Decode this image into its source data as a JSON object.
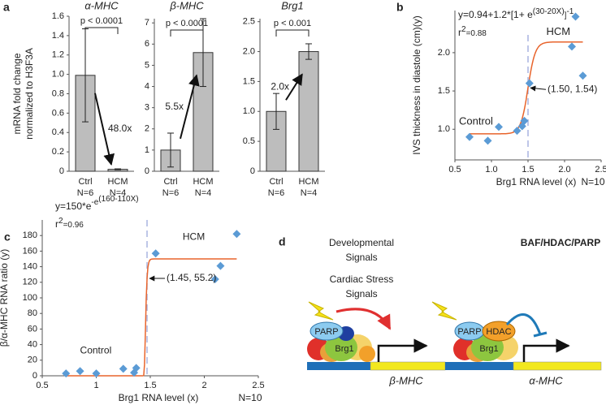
{
  "chart_data": [
    {
      "type": "bar",
      "panel": "a",
      "title": "α-MHC",
      "ylabel": [
        "mRNA fold change",
        "normalized to H3F3A"
      ],
      "categories": [
        "Ctrl",
        "HCM"
      ],
      "n_labels": [
        "N=6",
        "N=4"
      ],
      "values": [
        0.99,
        0.02
      ],
      "errors": [
        0.48,
        0.005
      ],
      "ylim": [
        0,
        1.6
      ],
      "yticks": [
        0,
        0.2,
        0.4,
        0.6,
        0.8,
        {
          "value": 1,
          "label": "1.0"
        },
        1.2,
        1.4,
        1.6
      ],
      "p_label": "p < 0.0001",
      "fold_label": "48.0x",
      "color": "#bdbdbd"
    },
    {
      "type": "bar",
      "title": "β-MHC",
      "categories": [
        "Ctrl",
        "HCM"
      ],
      "n_labels": [
        "N=6",
        "N=4"
      ],
      "values": [
        1.0,
        5.6
      ],
      "errors": [
        0.8,
        1.6
      ],
      "ylim": [
        0,
        7.2
      ],
      "yticks": [
        0,
        1,
        2,
        3,
        4,
        5,
        6,
        7
      ],
      "p_label": "p < 0.0001",
      "fold_label": "5.5x",
      "color": "#bdbdbd"
    },
    {
      "type": "bar",
      "title": "Brg1",
      "categories": [
        "Ctrl",
        "HCM"
      ],
      "n_labels": [
        "N=6",
        "N=4"
      ],
      "values": [
        1.0,
        2.0
      ],
      "errors": [
        0.3,
        0.13
      ],
      "ylim": [
        0,
        2.55
      ],
      "yticks": [
        0,
        0.5,
        {
          "value": 1,
          "label": "1.0"
        },
        1.5,
        {
          "value": 2,
          "label": "2.0"
        },
        2.5
      ],
      "p_label": "p < 0.001",
      "fold_label": "2.0x",
      "color": "#bdbdbd"
    },
    {
      "type": "scatter",
      "panel": "b",
      "xlabel": "Brg1 RNA level (x)",
      "ylabel": "IVS thickness in diastole (cm)(y)",
      "x": [
        0.7,
        0.95,
        1.1,
        1.35,
        1.42,
        1.45,
        1.52,
        2.1,
        2.15,
        2.25
      ],
      "values": [
        0.9,
        0.85,
        1.03,
        0.98,
        1.04,
        1.11,
        1.6,
        2.08,
        2.47,
        1.7
      ],
      "xlim": [
        0.5,
        2.5
      ],
      "xticks": [
        0.5,
        {
          "value": 1,
          "label": "1.0"
        },
        1.5,
        {
          "value": 2,
          "label": "2.0"
        },
        2.5
      ],
      "ylim": [
        0.6,
        2.55
      ],
      "yticks": [
        {
          "value": 1,
          "label": "1.0"
        },
        1.5,
        {
          "value": 2,
          "label": "2.0"
        }
      ],
      "fit": {
        "base": 0.94,
        "amp": 1.2,
        "k0": 30,
        "k1": 20
      },
      "equation": [
        "y=0.94+1.2*[1+ e",
        "(30-20X)",
        "]",
        "-1"
      ],
      "r2": [
        "r",
        "2",
        "=0.88"
      ],
      "threshold": 1.5,
      "point_label": "(1.50, 1.54)",
      "group_labels": [
        "Control",
        "HCM"
      ],
      "n_label": "N=10",
      "color": "#5b9bd5",
      "fit_color": "#e8642c"
    },
    {
      "type": "scatter",
      "panel": "c",
      "xlabel": "Brg1 RNA level (x)",
      "ylabel": "β/α-MHC RNA ratio (y)",
      "x": [
        0.72,
        0.85,
        1.0,
        1.25,
        1.35,
        1.37,
        1.55,
        2.1,
        2.15,
        2.3
      ],
      "values": [
        3,
        6,
        3,
        9,
        4,
        10,
        157,
        124,
        141,
        182
      ],
      "xlim": [
        0.5,
        2.5
      ],
      "xticks": [
        0.5,
        1,
        1.5,
        2,
        2.5
      ],
      "ylim": [
        0,
        200
      ],
      "yticks": [
        0,
        20,
        40,
        60,
        80,
        100,
        120,
        140,
        160,
        180
      ],
      "fit": {
        "amp": 150,
        "k0": 160,
        "k1": 110
      },
      "equation": [
        "y=150*e",
        "-e",
        "(160-110X)"
      ],
      "r2": [
        "r",
        "2",
        "=0.96"
      ],
      "threshold": 1.47,
      "point_label": "(1.45, 55.2)",
      "group_labels": [
        "Control",
        "HCM"
      ],
      "n_label": "N=10",
      "color": "#5b9bd5",
      "fit_color": "#e8642c"
    }
  ],
  "diagram": {
    "panel": "d",
    "signals": [
      "Developmental",
      "Signals"
    ],
    "stress": [
      "Cardiac Stress",
      "Signals"
    ],
    "complex_title": "BAF/HDAC/PARP",
    "complex1": [
      "PARP",
      "Brg1"
    ],
    "complex2": [
      "PARP",
      "HDAC",
      "Brg1"
    ],
    "genes": [
      "β-MHC",
      "α-MHC"
    ]
  }
}
